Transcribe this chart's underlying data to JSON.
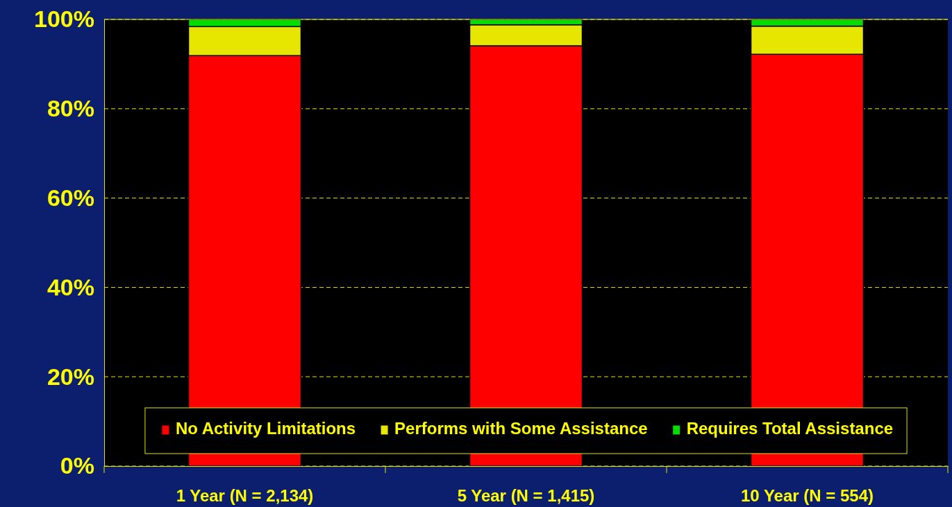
{
  "chart_data": {
    "type": "bar",
    "stacked": true,
    "categories": [
      "1 Year (N = 2,134)",
      "5 Year (N = 1,415)",
      "10 Year (N = 554)"
    ],
    "series": [
      {
        "name": "No Activity Limitations",
        "color": "#ff0000",
        "values": [
          91.9,
          94.1,
          92.2
        ]
      },
      {
        "name": "Performs with Some Assistance",
        "color": "#e6e600",
        "values": [
          6.5,
          4.7,
          6.3
        ]
      },
      {
        "name": "Requires Total Assistance",
        "color": "#00dd00",
        "values": [
          1.6,
          1.2,
          1.5
        ]
      }
    ],
    "ylim": [
      0,
      100
    ],
    "yticks": [
      {
        "value": 0,
        "label": "0%"
      },
      {
        "value": 20,
        "label": "20%"
      },
      {
        "value": 40,
        "label": "40%"
      },
      {
        "value": 60,
        "label": "60%"
      },
      {
        "value": 80,
        "label": "80%"
      },
      {
        "value": 100,
        "label": "100%"
      }
    ],
    "grid": "y",
    "legend": "bottom"
  }
}
